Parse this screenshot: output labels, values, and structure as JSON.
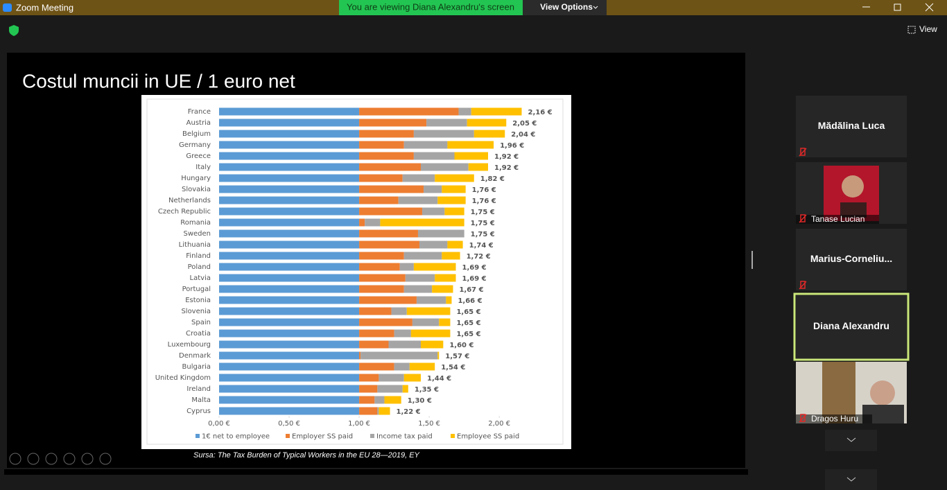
{
  "window": {
    "title": "Zoom Meeting"
  },
  "banner": {
    "message": "You are viewing Diana Alexandru's screen",
    "view_options": "View Options"
  },
  "view_button": "View",
  "slide": {
    "title": "Costul muncii in UE / 1 euro net",
    "source": "Sursa: The Tax Burden of Typical Workers in the EU 28—2019, EY"
  },
  "participants": [
    "Mădălina Luca",
    "Tanase Lucian",
    "Marius-Corneliu...",
    "Diana Alexandru",
    "Dragos Huru"
  ],
  "chart_data": {
    "type": "bar",
    "orientation": "horizontal",
    "stacked": true,
    "categories": [
      "France",
      "Austria",
      "Belgium",
      "Germany",
      "Greece",
      "Italy",
      "Hungary",
      "Slovakia",
      "Netherlands",
      "Czech Republic",
      "Romania",
      "Sweden",
      "Lithuania",
      "Finland",
      "Poland",
      "Latvia",
      "Portugal",
      "Estonia",
      "Slovenia",
      "Spain",
      "Croatia",
      "Luxembourg",
      "Denmark",
      "Bulgaria",
      "United Kingdom",
      "Ireland",
      "Malta",
      "Cyprus"
    ],
    "series": [
      {
        "name": "1€ net to employee",
        "color": "#5b9bd5",
        "values": [
          1,
          1,
          1,
          1,
          1,
          1,
          1,
          1,
          1,
          1,
          1,
          1,
          1,
          1,
          1,
          1,
          1,
          1,
          1,
          1,
          1,
          1,
          1,
          1,
          1,
          1,
          1,
          1
        ]
      },
      {
        "name": "Employer SS paid",
        "color": "#ed7d31",
        "values": [
          0.71,
          0.48,
          0.39,
          0.32,
          0.39,
          0.44,
          0.31,
          0.46,
          0.28,
          0.45,
          0.04,
          0.42,
          0.43,
          0.32,
          0.29,
          0.33,
          0.32,
          0.41,
          0.23,
          0.38,
          0.25,
          0.21,
          0.01,
          0.25,
          0.14,
          0.13,
          0.11,
          0.13
        ]
      },
      {
        "name": "Income tax paid",
        "color": "#a5a5a5",
        "values": [
          0.09,
          0.29,
          0.43,
          0.31,
          0.29,
          0.34,
          0.23,
          0.13,
          0.28,
          0.16,
          0.11,
          0.33,
          0.2,
          0.27,
          0.1,
          0.21,
          0.2,
          0.21,
          0.11,
          0.19,
          0.12,
          0.23,
          0.55,
          0.11,
          0.18,
          0.18,
          0.07,
          0.01
        ]
      },
      {
        "name": "Employee SS paid",
        "color": "#ffc000",
        "values": [
          0.36,
          0.28,
          0.22,
          0.33,
          0.24,
          0.14,
          0.28,
          0.17,
          0.2,
          0.14,
          0.6,
          0,
          0.11,
          0.13,
          0.3,
          0.15,
          0.15,
          0.04,
          0.31,
          0.08,
          0.28,
          0.16,
          0.01,
          0.18,
          0.12,
          0.04,
          0.12,
          0.08
        ]
      }
    ],
    "total_values": [
      2.16,
      2.05,
      2.04,
      1.96,
      1.92,
      1.92,
      1.82,
      1.76,
      1.76,
      1.75,
      1.75,
      1.75,
      1.74,
      1.72,
      1.69,
      1.69,
      1.67,
      1.66,
      1.65,
      1.65,
      1.65,
      1.6,
      1.57,
      1.54,
      1.44,
      1.35,
      1.3,
      1.22
    ],
    "total_labels": [
      "2,16 €",
      "2,05 €",
      "2,04 €",
      "1,96 €",
      "1,92 €",
      "1,92 €",
      "1,82 €",
      "1,76 €",
      "1,76 €",
      "1,75 €",
      "1,75 €",
      "1,75 €",
      "1,74 €",
      "1,72 €",
      "1,69 €",
      "1,69 €",
      "1,67 €",
      "1,66 €",
      "1,65 €",
      "1,65 €",
      "1,65 €",
      "1,60 €",
      "1,57 €",
      "1,54 €",
      "1,44 €",
      "1,35 €",
      "1,30 €",
      "1,22 €"
    ],
    "xlim": [
      0,
      2.4
    ],
    "xticks": [
      {
        "value": 0,
        "label": "0,00 €"
      },
      {
        "value": 0.5,
        "label": "0,50 €"
      },
      {
        "value": 1,
        "label": "1,00 €"
      },
      {
        "value": 1.5,
        "label": "1,50 €"
      },
      {
        "value": 2,
        "label": "2,00 €"
      }
    ],
    "legend": "bottom"
  }
}
